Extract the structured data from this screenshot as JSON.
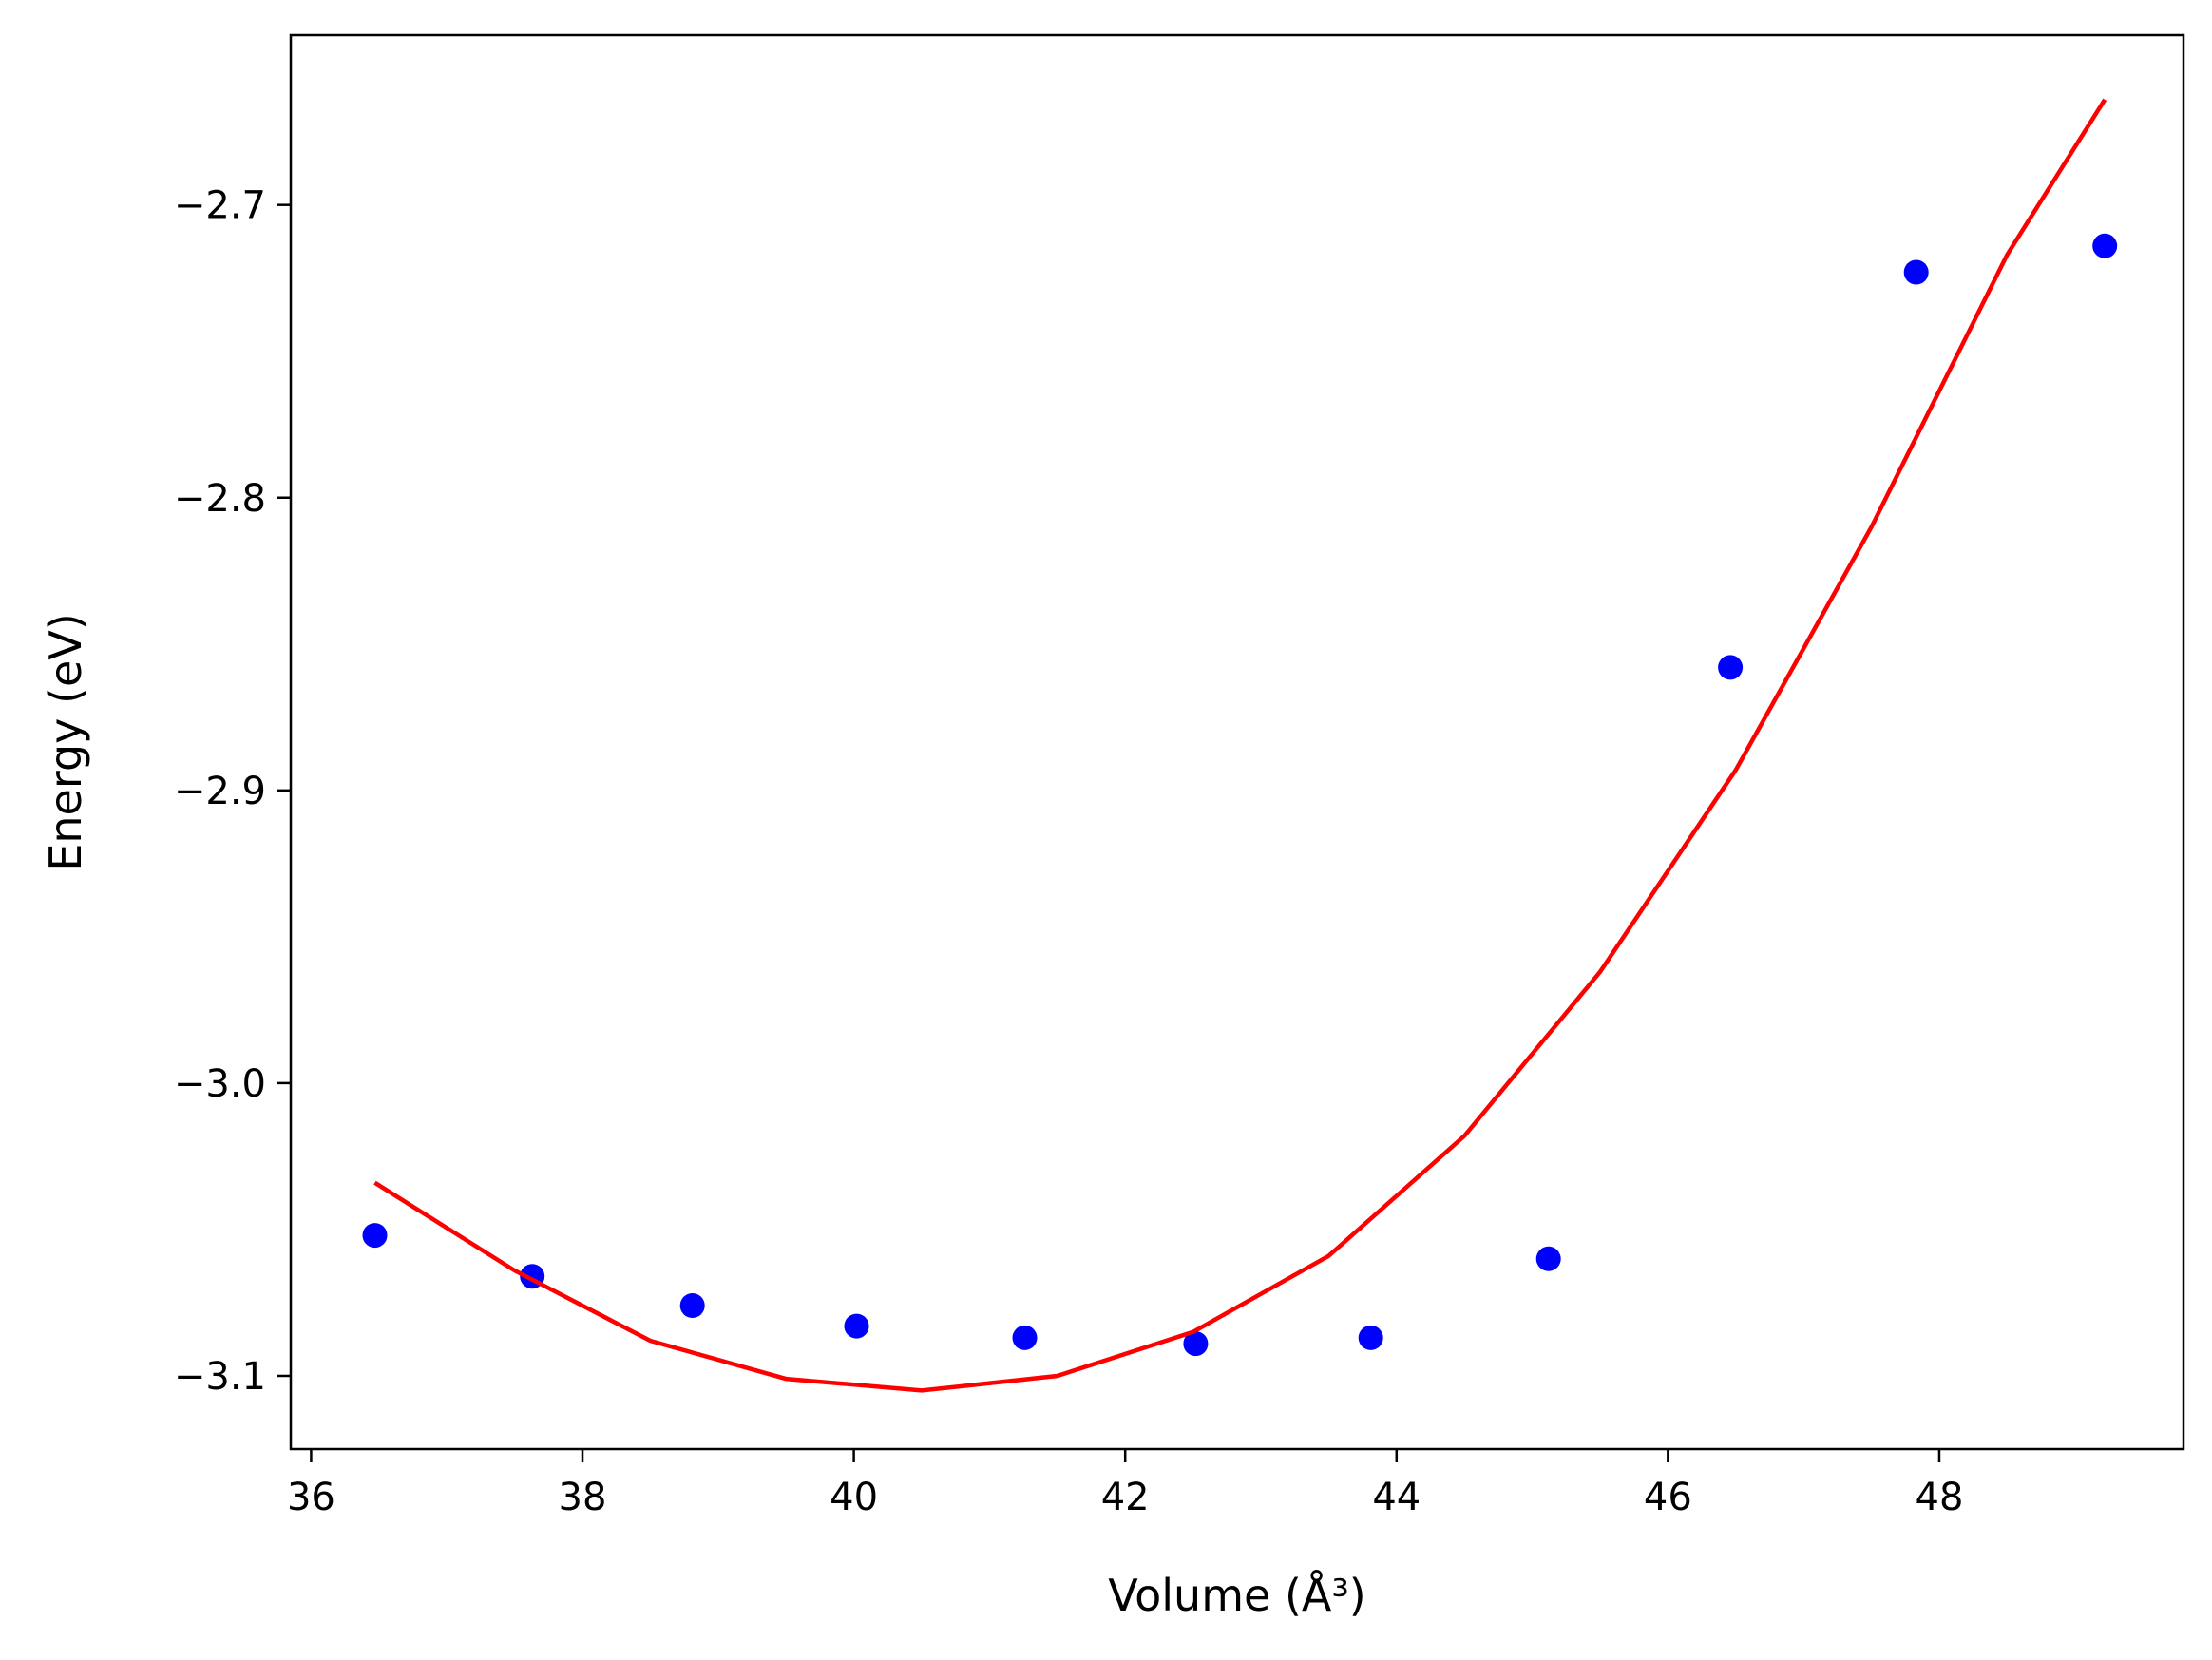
{
  "chart_data": {
    "type": "scatter",
    "xlabel": "Volume (Å³)",
    "ylabel": "Energy (eV)",
    "xlim": [
      35.85,
      49.8
    ],
    "ylim": [
      -3.125,
      -2.642
    ],
    "xticks": [
      36,
      38,
      40,
      42,
      44,
      46,
      48
    ],
    "yticks": [
      -3.1,
      -3.0,
      -2.9,
      -2.8,
      -2.7
    ],
    "xtick_labels": [
      "36",
      "38",
      "40",
      "42",
      "44",
      "46",
      "48"
    ],
    "ytick_labels": [
      "−3.1",
      "−3.0",
      "−2.9",
      "−2.8",
      "−2.7"
    ],
    "grid": false,
    "legend": "none",
    "series": [
      {
        "kind": "points",
        "color": "#0000ff",
        "x": [
          36.47,
          37.63,
          38.81,
          40.02,
          41.26,
          42.52,
          43.81,
          45.12,
          46.46,
          47.83,
          49.22
        ],
        "y": [
          -3.052,
          -3.066,
          -3.076,
          -3.083,
          -3.087,
          -3.089,
          -3.087,
          -3.06,
          -2.858,
          -2.723,
          -2.714
        ]
      },
      {
        "kind": "fit-line",
        "color": "#ff0000",
        "x": [
          36.47,
          37.5,
          38.5,
          39.5,
          40.5,
          41.5,
          42.5,
          43.5,
          44.5,
          45.5,
          46.5,
          47.5,
          48.5,
          49.22
        ],
        "y": [
          -3.034,
          -3.064,
          -3.088,
          -3.101,
          -3.105,
          -3.1,
          -3.085,
          -3.059,
          -3.018,
          -2.962,
          -2.893,
          -2.81,
          -2.717,
          -2.664
        ]
      }
    ]
  }
}
